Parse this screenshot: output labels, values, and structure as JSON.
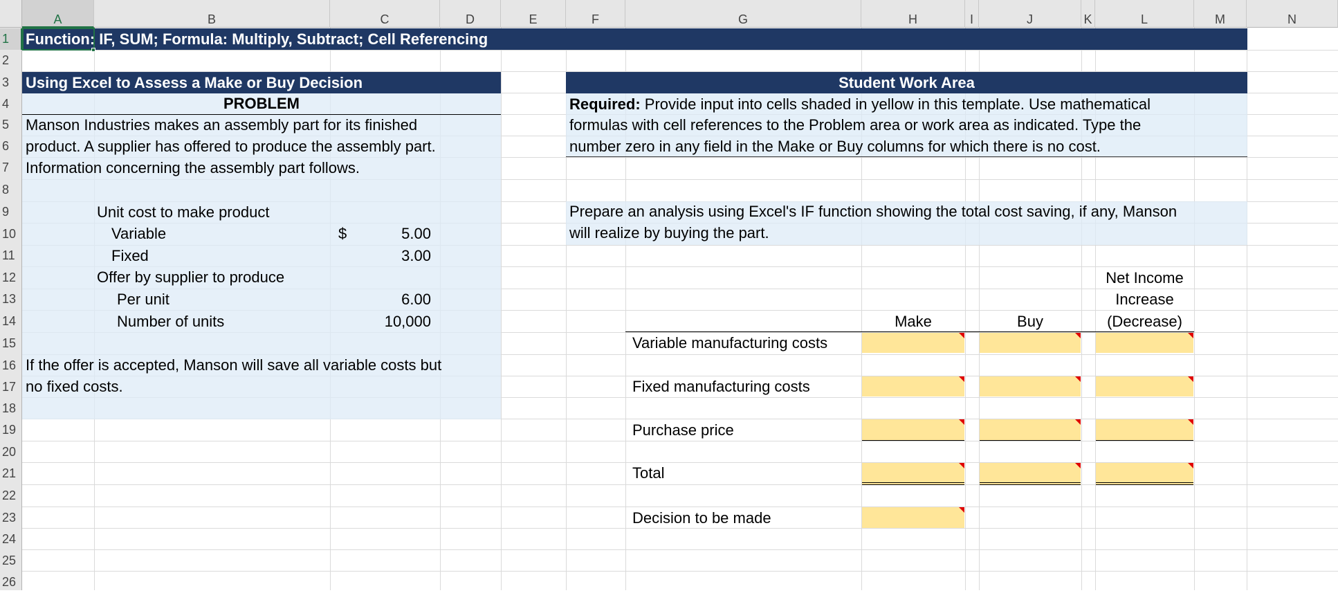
{
  "columns": [
    "A",
    "B",
    "C",
    "D",
    "E",
    "F",
    "G",
    "H",
    "I",
    "J",
    "K",
    "L",
    "M",
    "N"
  ],
  "rows": [
    "1",
    "2",
    "3",
    "4",
    "5",
    "6",
    "7",
    "8",
    "9",
    "10",
    "11",
    "12",
    "13",
    "14",
    "15",
    "16",
    "17",
    "18",
    "19",
    "20",
    "21",
    "22",
    "23",
    "24",
    "25",
    "26"
  ],
  "title_bar": "Function: IF, SUM; Formula: Multiply, Subtract; Cell Referencing",
  "problem": {
    "header": "Using Excel to Assess a Make or Buy Decision",
    "subheader": "PROBLEM",
    "intro": [
      "Manson Industries makes an assembly part for its finished",
      "product. A supplier has offered to produce the assembly part.",
      "Information concerning the assembly part follows."
    ],
    "unit_cost_label": "Unit cost to make product",
    "variable_label": "Variable",
    "currency": "$",
    "variable_value": "5.00",
    "fixed_label": "Fixed",
    "fixed_value": "3.00",
    "offer_label": "Offer by supplier to produce",
    "per_unit_label": "Per unit",
    "per_unit_value": "6.00",
    "units_label": "Number of units",
    "units_value": "10,000",
    "note": [
      "If the offer is accepted, Manson will save all variable costs but",
      "no fixed costs."
    ]
  },
  "work_area": {
    "header": "Student Work Area",
    "required_bold": "Required:",
    "required_text": [
      " Provide input into cells shaded in yellow in this template. Use mathematical",
      "formulas with cell references to the Problem area or work area as indicated. Type the",
      "number zero in any field in the Make or Buy columns for which there is no cost."
    ],
    "instruction": [
      "Prepare an analysis using Excel's IF function showing the total cost saving, if any, Manson",
      "will realize by buying the part."
    ],
    "col_make": "Make",
    "col_buy": "Buy",
    "col_net": [
      "Net Income",
      "Increase",
      "(Decrease)"
    ],
    "rows": {
      "variable": "Variable manufacturing costs",
      "fixed": "Fixed manufacturing costs",
      "purchase": "Purchase price",
      "total": "Total",
      "decision": "Decision to be made"
    }
  },
  "colors": {
    "header_navy": "#1f3864",
    "panel_blue": "#ddebf7",
    "input_yellow": "#ffe699",
    "comment_red": "#e00000",
    "selection_green": "#217346"
  }
}
